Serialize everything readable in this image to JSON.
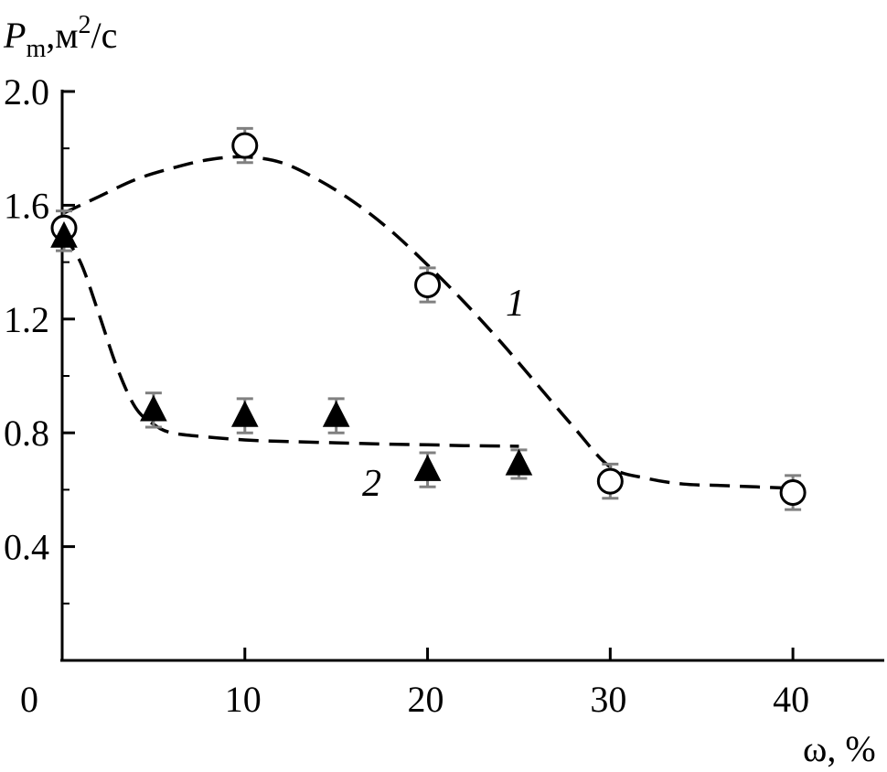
{
  "chart_data": {
    "type": "scatter",
    "title": "",
    "ylabel_main": "P",
    "ylabel_sub": "m",
    "ylabel_rest": ",м",
    "ylabel_sup": "2",
    "ylabel_tail": "/с",
    "xlabel": "ω, %",
    "xlim": [
      0,
      45
    ],
    "ylim": [
      0.0,
      2.0
    ],
    "x_ticks": [
      0,
      10,
      20,
      30,
      40
    ],
    "x_tick_labels": [
      "0",
      "10",
      "20",
      "30",
      "40"
    ],
    "y_ticks": [
      0.4,
      0.8,
      1.2,
      1.6,
      2.0
    ],
    "y_tick_labels": [
      "0.4",
      "0.8",
      "1.2",
      "1.6",
      "2.0"
    ],
    "grid": false,
    "series": [
      {
        "marker": "open-circle",
        "curve_label": "1",
        "points": [
          {
            "x": 0,
            "y": 1.52,
            "err": 0.06
          },
          {
            "x": 10,
            "y": 1.81,
            "err": 0.06
          },
          {
            "x": 20,
            "y": 1.32,
            "err": 0.06
          },
          {
            "x": 30,
            "y": 0.63,
            "err": 0.06
          },
          {
            "x": 40,
            "y": 0.59,
            "err": 0.06
          }
        ],
        "fit_curve": [
          [
            0,
            1.57
          ],
          [
            2,
            1.63
          ],
          [
            4,
            1.69
          ],
          [
            6,
            1.73
          ],
          [
            8,
            1.76
          ],
          [
            10,
            1.77
          ],
          [
            12,
            1.75
          ],
          [
            14,
            1.69
          ],
          [
            16,
            1.61
          ],
          [
            18,
            1.51
          ],
          [
            20,
            1.39
          ],
          [
            22,
            1.26
          ],
          [
            24,
            1.12
          ],
          [
            26,
            0.97
          ],
          [
            28,
            0.82
          ],
          [
            30,
            0.68
          ],
          [
            32,
            0.64
          ],
          [
            34,
            0.62
          ],
          [
            36,
            0.615
          ],
          [
            38,
            0.61
          ],
          [
            40,
            0.605
          ]
        ]
      },
      {
        "marker": "filled-triangle",
        "curve_label": "2",
        "points": [
          {
            "x": 0,
            "y": 1.49,
            "err": 0.05
          },
          {
            "x": 5,
            "y": 0.88,
            "err": 0.06
          },
          {
            "x": 10,
            "y": 0.86,
            "err": 0.06
          },
          {
            "x": 15,
            "y": 0.86,
            "err": 0.06
          },
          {
            "x": 20,
            "y": 0.67,
            "err": 0.06
          },
          {
            "x": 25,
            "y": 0.69,
            "err": 0.05
          }
        ],
        "fit_curve": [
          [
            0,
            1.5
          ],
          [
            1,
            1.4
          ],
          [
            2,
            1.22
          ],
          [
            3,
            1.03
          ],
          [
            4,
            0.89
          ],
          [
            5,
            0.83
          ],
          [
            6,
            0.8
          ],
          [
            8,
            0.785
          ],
          [
            10,
            0.775
          ],
          [
            12,
            0.77
          ],
          [
            15,
            0.765
          ],
          [
            18,
            0.76
          ],
          [
            20,
            0.758
          ],
          [
            22,
            0.755
          ],
          [
            25,
            0.753
          ]
        ]
      }
    ],
    "colors": {
      "line": "#000000",
      "errorbar": "#808080"
    }
  }
}
